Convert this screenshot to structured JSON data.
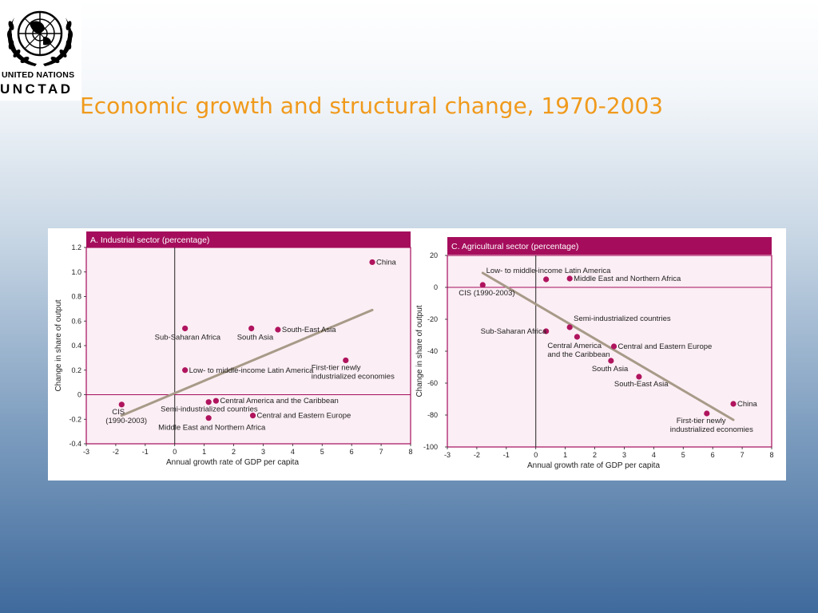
{
  "logo": {
    "line1": "UNITED NATIONS",
    "line2": "UNCTAD"
  },
  "slide": {
    "title": "Economic growth and structural change, 1970-2003"
  },
  "colors": {
    "title": "#f09a1c",
    "panel_header": "#a50d5c",
    "panel_bg": "#fbeef4",
    "point": "#b0145e",
    "trend": "#a79a88"
  },
  "chart_data": [
    {
      "type": "scatter",
      "title": "A. Industrial sector (percentage)",
      "xlabel": "Annual growth rate of GDP per capita",
      "ylabel": "Change in share of output",
      "xlim": [
        -3,
        8
      ],
      "ylim": [
        -0.4,
        1.2
      ],
      "xticks": [
        "-3",
        "-2",
        "-1",
        "0",
        "1",
        "2",
        "3",
        "4",
        "5",
        "6",
        "7",
        "8"
      ],
      "yticks": [
        "1.2",
        "1.0",
        "0.8",
        "0.6",
        "0.4",
        "0.2",
        "0",
        "-0.2",
        "-0.4"
      ],
      "trend": [
        [
          -1.8,
          -0.17
        ],
        [
          6.7,
          0.69
        ]
      ],
      "points": [
        {
          "label": "China",
          "x": 6.7,
          "y": 1.08
        },
        {
          "label": "Sub-Saharan Africa",
          "x": 0.35,
          "y": 0.54
        },
        {
          "label": "South Asia",
          "x": 2.6,
          "y": 0.54
        },
        {
          "label": "South-East Asia",
          "x": 3.5,
          "y": 0.53
        },
        {
          "label": "First-tier newly industrialized economies",
          "x": 5.8,
          "y": 0.28
        },
        {
          "label": "Low- to middle-income Latin America",
          "x": 0.35,
          "y": 0.2
        },
        {
          "label": "Central America and the Caribbean",
          "x": 1.4,
          "y": -0.05
        },
        {
          "label": "Semi-industrialized countries",
          "x": 1.15,
          "y": -0.06
        },
        {
          "label": "CIS (1990-2003)",
          "x": -1.8,
          "y": -0.08
        },
        {
          "label": "Central and Eastern Europe",
          "x": 2.65,
          "y": -0.17
        },
        {
          "label": "Middle East and Northern Africa",
          "x": 1.15,
          "y": -0.19
        }
      ]
    },
    {
      "type": "scatter",
      "title": "C. Agricultural sector (percentage)",
      "xlabel": "Annual growth rate of GDP per capita",
      "ylabel": "Change in share of output",
      "xlim": [
        -3,
        8
      ],
      "ylim": [
        -100,
        20
      ],
      "xticks": [
        "-3",
        "-2",
        "-1",
        "0",
        "1",
        "2",
        "3",
        "4",
        "5",
        "6",
        "7",
        "8"
      ],
      "yticks": [
        "20",
        "0",
        "-20",
        "-40",
        "-60",
        "-80",
        "-100"
      ],
      "trend": [
        [
          -1.8,
          9
        ],
        [
          6.7,
          -83
        ]
      ],
      "points": [
        {
          "label": "Low- to middle-income Latin America",
          "x": 0.35,
          "y": 5
        },
        {
          "label": "Middle East and Northern Africa",
          "x": 1.15,
          "y": 5.5
        },
        {
          "label": "CIS (1990-2003)",
          "x": -1.8,
          "y": 1.5
        },
        {
          "label": "Semi-industrialized countries",
          "x": 1.15,
          "y": -25
        },
        {
          "label": "Sub-Saharan Africa",
          "x": 0.35,
          "y": -27.5
        },
        {
          "label": "Central America and the Caribbean",
          "x": 1.4,
          "y": -31
        },
        {
          "label": "Central and Eastern Europe",
          "x": 2.65,
          "y": -37
        },
        {
          "label": "South Asia",
          "x": 2.55,
          "y": -46
        },
        {
          "label": "South-East Asia",
          "x": 3.5,
          "y": -56
        },
        {
          "label": "China",
          "x": 6.7,
          "y": -73
        },
        {
          "label": "First-tier newly industrialized economies",
          "x": 5.8,
          "y": -79
        }
      ]
    }
  ]
}
